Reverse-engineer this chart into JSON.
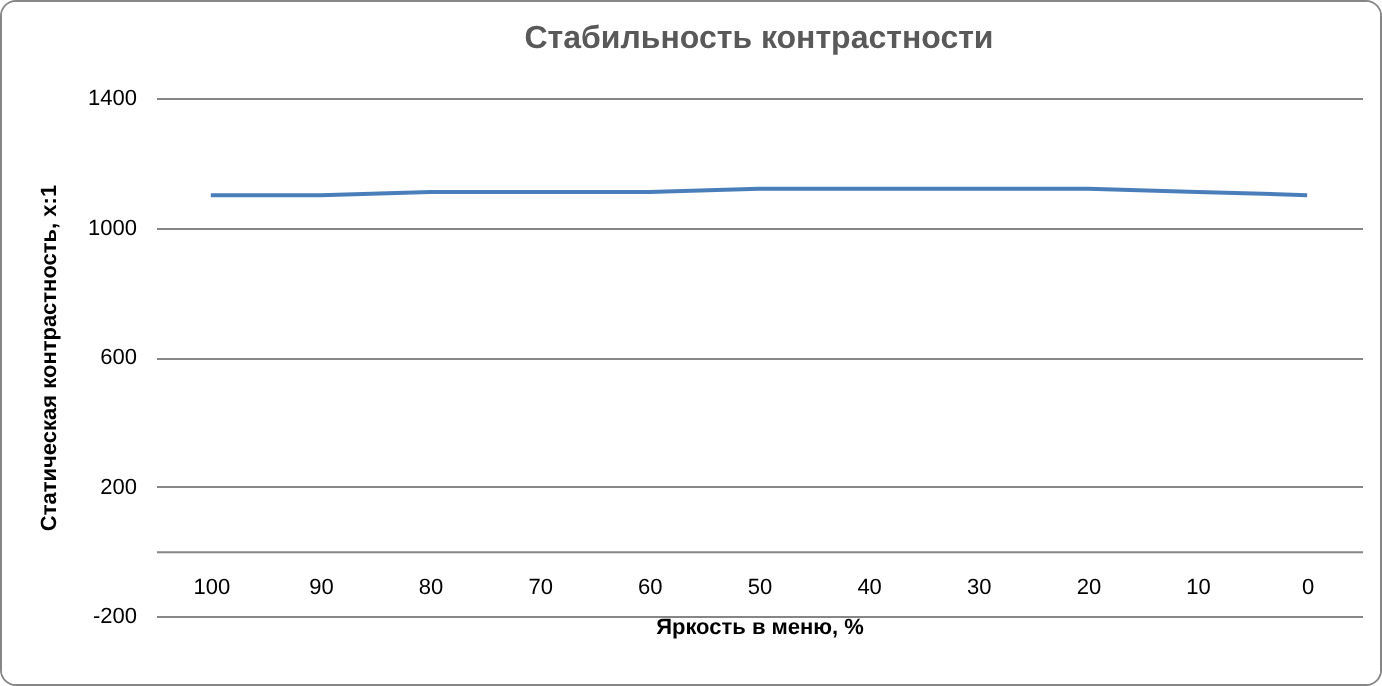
{
  "chart_data": {
    "type": "line",
    "title": "Стабильность контрастности",
    "xlabel": "Яркость  в меню, %",
    "ylabel": "Статическая  контрастность,  x:1",
    "categories": [
      "100",
      "90",
      "80",
      "70",
      "60",
      "50",
      "40",
      "30",
      "20",
      "10",
      "0"
    ],
    "series": [
      {
        "color": "#4a7ebb",
        "values": [
          1100,
          1100,
          1110,
          1110,
          1110,
          1120,
          1120,
          1120,
          1120,
          1110,
          1100
        ]
      }
    ],
    "ylim": [
      -200,
      1400
    ],
    "yticks": [
      -200,
      200,
      600,
      1000,
      1400
    ],
    "grid": "y"
  }
}
